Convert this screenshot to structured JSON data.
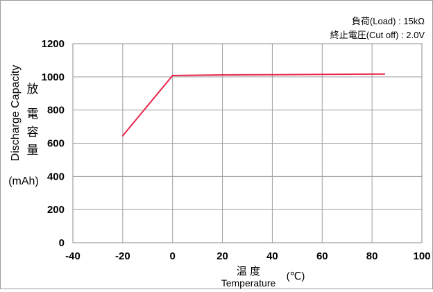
{
  "chart_data": {
    "type": "line",
    "conditions": [
      "負荷(Load) : 15kΩ",
      "終止電圧(Cut off) : 2.0V"
    ],
    "ylabel": {
      "en": "Discharge Capacity",
      "jp": [
        "放",
        "電",
        "容",
        "量"
      ],
      "unit": "(mAh)"
    },
    "xlabel": {
      "jp": "温 度",
      "en": "Temperature",
      "unit": "(℃)"
    },
    "xlim": [
      -40,
      100
    ],
    "ylim": [
      0,
      1200
    ],
    "xticks": [
      -40,
      -20,
      0,
      20,
      40,
      60,
      80,
      100
    ],
    "yticks": [
      0,
      200,
      400,
      600,
      800,
      1000,
      1200
    ],
    "grid": true,
    "series": [
      {
        "color": "#e8244a",
        "x": [
          -20,
          0,
          20,
          40,
          60,
          85
        ],
        "y": [
          645,
          1008,
          1012,
          1013,
          1015,
          1017
        ]
      }
    ]
  }
}
